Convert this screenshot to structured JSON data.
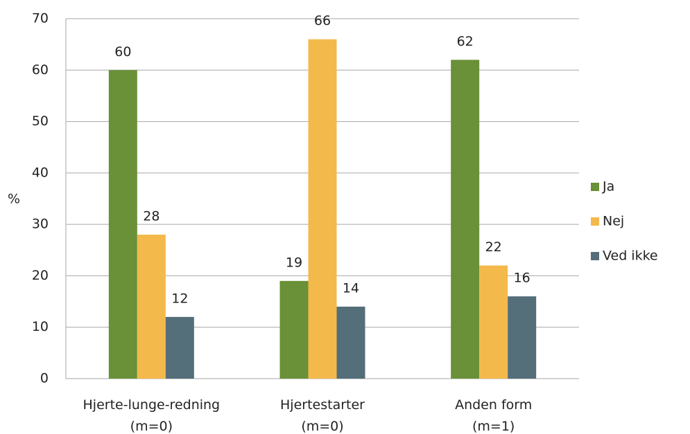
{
  "chart_data": {
    "type": "bar",
    "ylabel": "%",
    "categories": [
      [
        "Hjerte-lunge-redning",
        "(m=0)"
      ],
      [
        "Hjertestarter",
        "(m=0)"
      ],
      [
        "Anden form",
        "(m=1)"
      ]
    ],
    "series": [
      {
        "name": "Ja",
        "color": "#6a9038",
        "values": [
          60,
          19,
          62
        ]
      },
      {
        "name": "Nej",
        "color": "#f4b94b",
        "values": [
          28,
          66,
          22
        ]
      },
      {
        "name": "Ved ikke",
        "color": "#546e7a",
        "values": [
          12,
          14,
          16
        ]
      }
    ],
    "ylim": [
      0,
      70
    ],
    "yticks": [
      0,
      10,
      20,
      30,
      40,
      50,
      60,
      70
    ],
    "grid": true,
    "legend": "right"
  }
}
